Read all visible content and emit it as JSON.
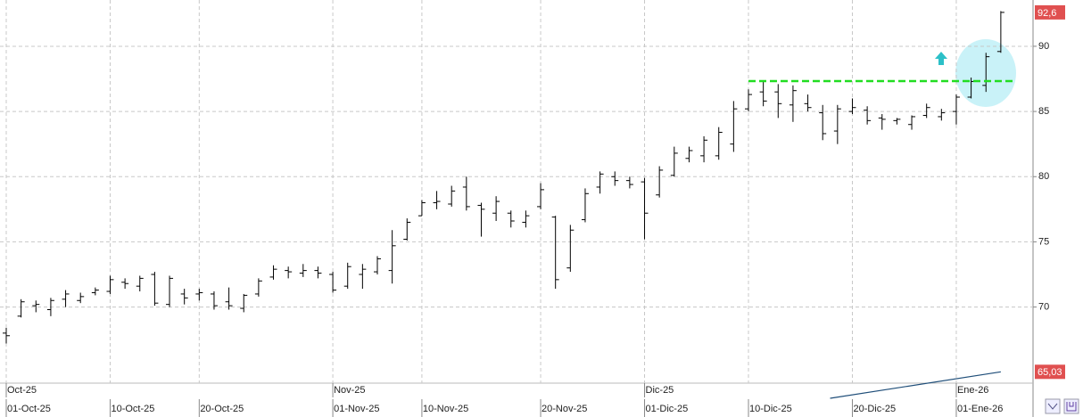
{
  "chart_data": {
    "type": "ohlc",
    "color": "#000000",
    "grid": true,
    "ylim": [
      63.0,
      93.55
    ],
    "yticks": [
      70,
      75,
      80,
      85,
      90
    ],
    "price_labels": [
      {
        "value": 92.6,
        "label": "92,6"
      },
      {
        "value": 65.03,
        "label": "65,03"
      }
    ],
    "price_label_color": "#e05050",
    "categories": [
      "01-Oct-25",
      null,
      null,
      null,
      null,
      null,
      null,
      "10-Oct-25",
      null,
      null,
      null,
      null,
      null,
      "20-Oct-25",
      null,
      null,
      null,
      null,
      null,
      null,
      null,
      null,
      "01-Nov-25",
      null,
      null,
      null,
      null,
      null,
      "10-Nov-25",
      null,
      null,
      null,
      null,
      null,
      null,
      null,
      "20-Nov-25",
      null,
      null,
      null,
      null,
      null,
      null,
      "01-Dic-25",
      null,
      null,
      null,
      null,
      null,
      null,
      "10-Dic-25",
      null,
      null,
      null,
      null,
      null,
      null,
      "20-Dic-25",
      null,
      null,
      null,
      null,
      null,
      null,
      "01-Ene-26",
      null,
      null,
      null
    ],
    "months": [
      "Oct-25",
      null,
      null,
      null,
      null,
      null,
      null,
      null,
      null,
      null,
      null,
      null,
      null,
      null,
      null,
      null,
      null,
      null,
      null,
      null,
      null,
      null,
      "Nov-25",
      null,
      null,
      null,
      null,
      null,
      null,
      null,
      null,
      null,
      null,
      null,
      null,
      null,
      null,
      null,
      null,
      null,
      null,
      null,
      null,
      "Dic-25",
      null,
      null,
      null,
      null,
      null,
      null,
      null,
      null,
      null,
      null,
      null,
      null,
      null,
      null,
      null,
      null,
      null,
      null,
      null,
      null,
      "Ene-26",
      null,
      null,
      null
    ],
    "open": [
      68.0,
      69.3,
      70.1,
      69.8,
      70.6,
      70.5,
      71.1,
      71.2,
      71.9,
      71.6,
      72.5,
      70.2,
      71.0,
      71.0,
      71.0,
      70.4,
      69.9,
      71.0,
      72.3,
      72.8,
      72.6,
      72.8,
      72.5,
      71.6,
      72.5,
      72.7,
      72.8,
      75.2,
      77.0,
      78.0,
      77.9,
      79.2,
      77.8,
      77.2,
      77.2,
      76.5,
      77.7,
      76.9,
      73.0,
      76.7,
      79.2,
      80.0,
      79.7,
      79.6,
      78.6,
      80.1,
      81.4,
      81.6,
      81.6,
      82.5,
      85.2,
      86.5,
      86.5,
      85.5,
      85.6,
      84.9,
      83.5,
      85.0,
      85.1,
      84.5,
      84.3,
      84.0,
      84.7,
      84.6,
      85.0,
      86.1,
      87.0,
      89.6
    ],
    "high": [
      68.4,
      70.6,
      70.5,
      70.7,
      71.3,
      71.1,
      71.5,
      72.4,
      72.2,
      72.4,
      72.7,
      72.4,
      71.4,
      71.4,
      71.2,
      71.5,
      71.0,
      72.2,
      73.2,
      73.1,
      73.3,
      73.1,
      72.7,
      73.4,
      73.3,
      73.9,
      75.9,
      76.8,
      78.2,
      78.9,
      79.3,
      80.0,
      78.0,
      78.5,
      77.4,
      77.4,
      79.5,
      77.0,
      76.3,
      79.1,
      80.4,
      80.4,
      80.0,
      79.9,
      80.8,
      82.3,
      82.3,
      83.1,
      83.8,
      85.8,
      86.7,
      87.4,
      87.1,
      87.0,
      86.3,
      85.5,
      85.5,
      86.0,
      85.4,
      84.8,
      84.5,
      84.7,
      85.6,
      85.2,
      86.3,
      87.6,
      89.5,
      92.7
    ],
    "low": [
      67.2,
      69.2,
      69.6,
      69.3,
      70.0,
      70.3,
      70.9,
      71.0,
      71.4,
      71.2,
      70.1,
      70.0,
      70.2,
      70.5,
      69.8,
      69.8,
      69.6,
      70.8,
      72.1,
      72.2,
      72.3,
      72.2,
      71.1,
      71.4,
      71.4,
      72.5,
      71.8,
      75.1,
      77.0,
      77.5,
      77.7,
      77.4,
      75.4,
      76.6,
      76.1,
      76.1,
      77.5,
      71.4,
      72.7,
      76.5,
      78.7,
      79.3,
      79.1,
      75.2,
      78.4,
      80.0,
      81.1,
      81.1,
      81.3,
      81.9,
      85.0,
      85.4,
      84.5,
      84.2,
      85.0,
      82.8,
      82.5,
      84.8,
      84.0,
      83.6,
      84.0,
      83.6,
      84.5,
      84.3,
      84.0,
      86.0,
      86.5,
      89.5
    ],
    "close": [
      67.8,
      70.4,
      70.2,
      70.5,
      71.0,
      70.8,
      71.3,
      72.1,
      71.8,
      72.2,
      70.3,
      72.2,
      70.7,
      71.1,
      70.1,
      70.1,
      70.9,
      72.0,
      72.9,
      72.7,
      72.8,
      72.6,
      71.3,
      73.1,
      72.9,
      73.7,
      74.7,
      76.5,
      78.0,
      78.1,
      78.9,
      77.7,
      77.5,
      78.1,
      76.6,
      77.0,
      79.0,
      72.1,
      75.9,
      78.7,
      80.2,
      79.7,
      79.4,
      77.2,
      80.5,
      81.8,
      82.0,
      82.8,
      83.4,
      85.2,
      86.3,
      85.8,
      85.6,
      86.6,
      85.3,
      83.3,
      85.2,
      85.3,
      84.3,
      84.4,
      84.4,
      84.6,
      85.3,
      84.9,
      86.1,
      87.3,
      89.2,
      92.6
    ],
    "resistance": {
      "color": "#22dd22",
      "x": [
        50,
        68
      ],
      "values": [
        87.33,
        87.33
      ]
    },
    "indicator": {
      "color": "#1f4e79",
      "x": [
        55.5,
        67
      ],
      "values": [
        63.0,
        65.03
      ]
    }
  }
}
